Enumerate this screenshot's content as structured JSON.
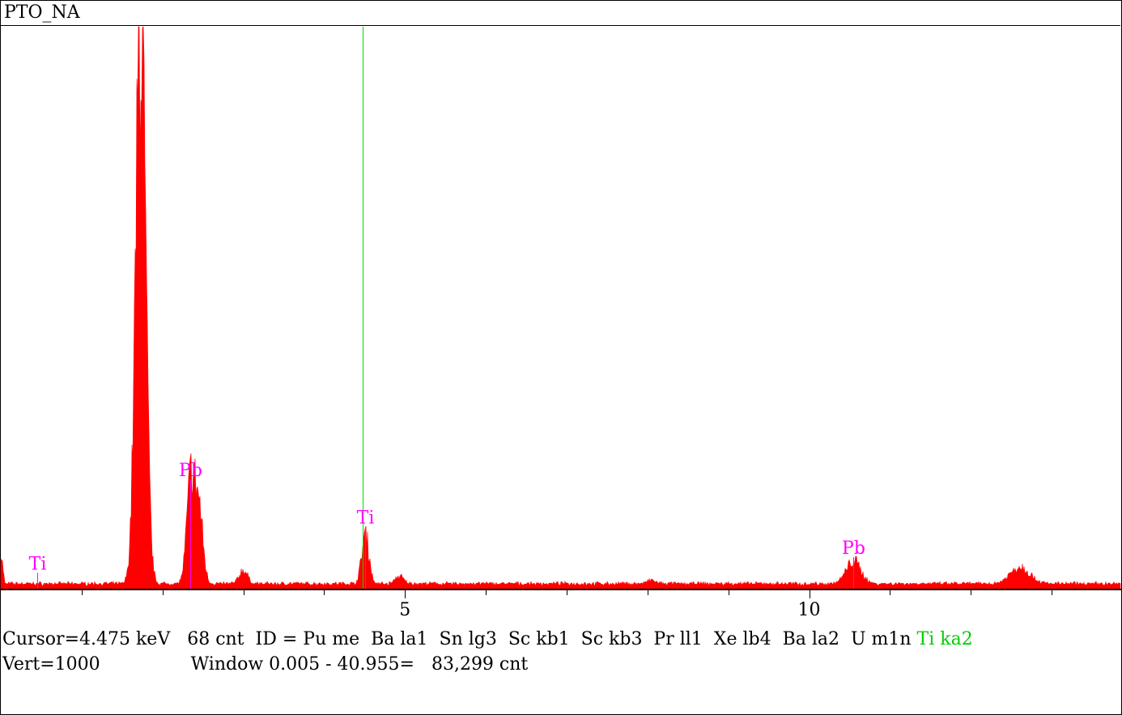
{
  "header": {
    "title": "PTO_NA"
  },
  "status": {
    "cursor": "Cursor=4.475 keV",
    "counts": "68 cnt",
    "id_prefix": "ID = Pu me  Ba la1  Sn lg3  Sc kb1  Sc kb3  Pr ll1  Xe lb4  Ba la2  U m1n",
    "id_highlight": "Ti ka2",
    "vert": "Vert=1000",
    "window": "Window 0.005 - 40.955=",
    "total": "83,299 cnt"
  },
  "colors": {
    "spectrum": "#ff0000",
    "label": "#ff00ff",
    "cursor": "#00dd00",
    "axis": "#000000"
  },
  "chart_data": {
    "type": "area",
    "xlim": [
      0,
      13.85
    ],
    "ylim": [
      0,
      1000
    ],
    "major_ticks": [
      5,
      10
    ],
    "minor_tick_step": 1,
    "cursor_x": 4.475,
    "background_level": 9,
    "peaks": [
      {
        "center": 1.73,
        "height": 1000,
        "width": 0.06
      },
      {
        "center": 2.35,
        "height": 180,
        "width": 0.05
      },
      {
        "center": 2.45,
        "height": 130,
        "width": 0.05
      },
      {
        "center": 3.0,
        "height": 24,
        "width": 0.05
      },
      {
        "center": 4.51,
        "height": 88,
        "width": 0.045
      },
      {
        "center": 4.93,
        "height": 13,
        "width": 0.05
      },
      {
        "center": 8.05,
        "height": 6,
        "width": 0.05
      },
      {
        "center": 10.55,
        "height": 40,
        "width": 0.09
      },
      {
        "center": 12.61,
        "height": 30,
        "width": 0.12
      }
    ],
    "annotations": [
      {
        "text": "Ti",
        "x": 0.45,
        "y": 34
      },
      {
        "text": "Pb",
        "x": 2.34,
        "y": 200
      },
      {
        "text": "Ti",
        "x": 4.51,
        "y": 116
      },
      {
        "text": "Pb",
        "x": 10.55,
        "y": 62
      }
    ],
    "tick_labels": [
      "5",
      "10"
    ]
  }
}
